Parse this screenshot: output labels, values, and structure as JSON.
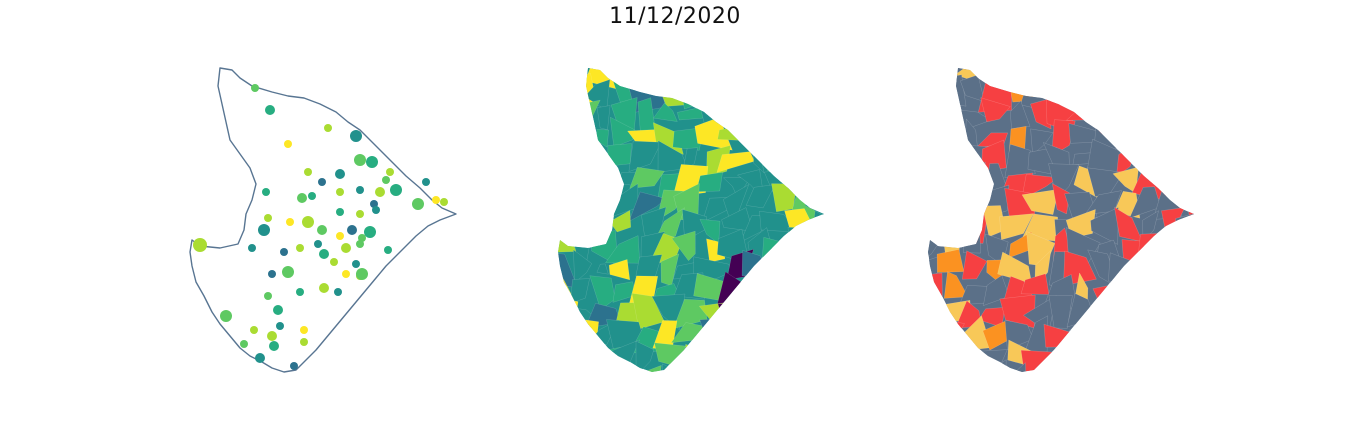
{
  "title": "11/12/2020",
  "palette": {
    "outline": "#587592",
    "viridis": [
      "#440154",
      "#3b528b",
      "#2c728e",
      "#21918c",
      "#27ad81",
      "#5ec962",
      "#aadc32",
      "#fde725"
    ],
    "categories": {
      "slate": "#5b7088",
      "red": "#f64042",
      "yellow": "#f8c858",
      "orange": "#fb9221"
    }
  },
  "panels": [
    {
      "kind": "point-map"
    },
    {
      "kind": "choropleth-map"
    },
    {
      "kind": "category-map"
    }
  ]
}
